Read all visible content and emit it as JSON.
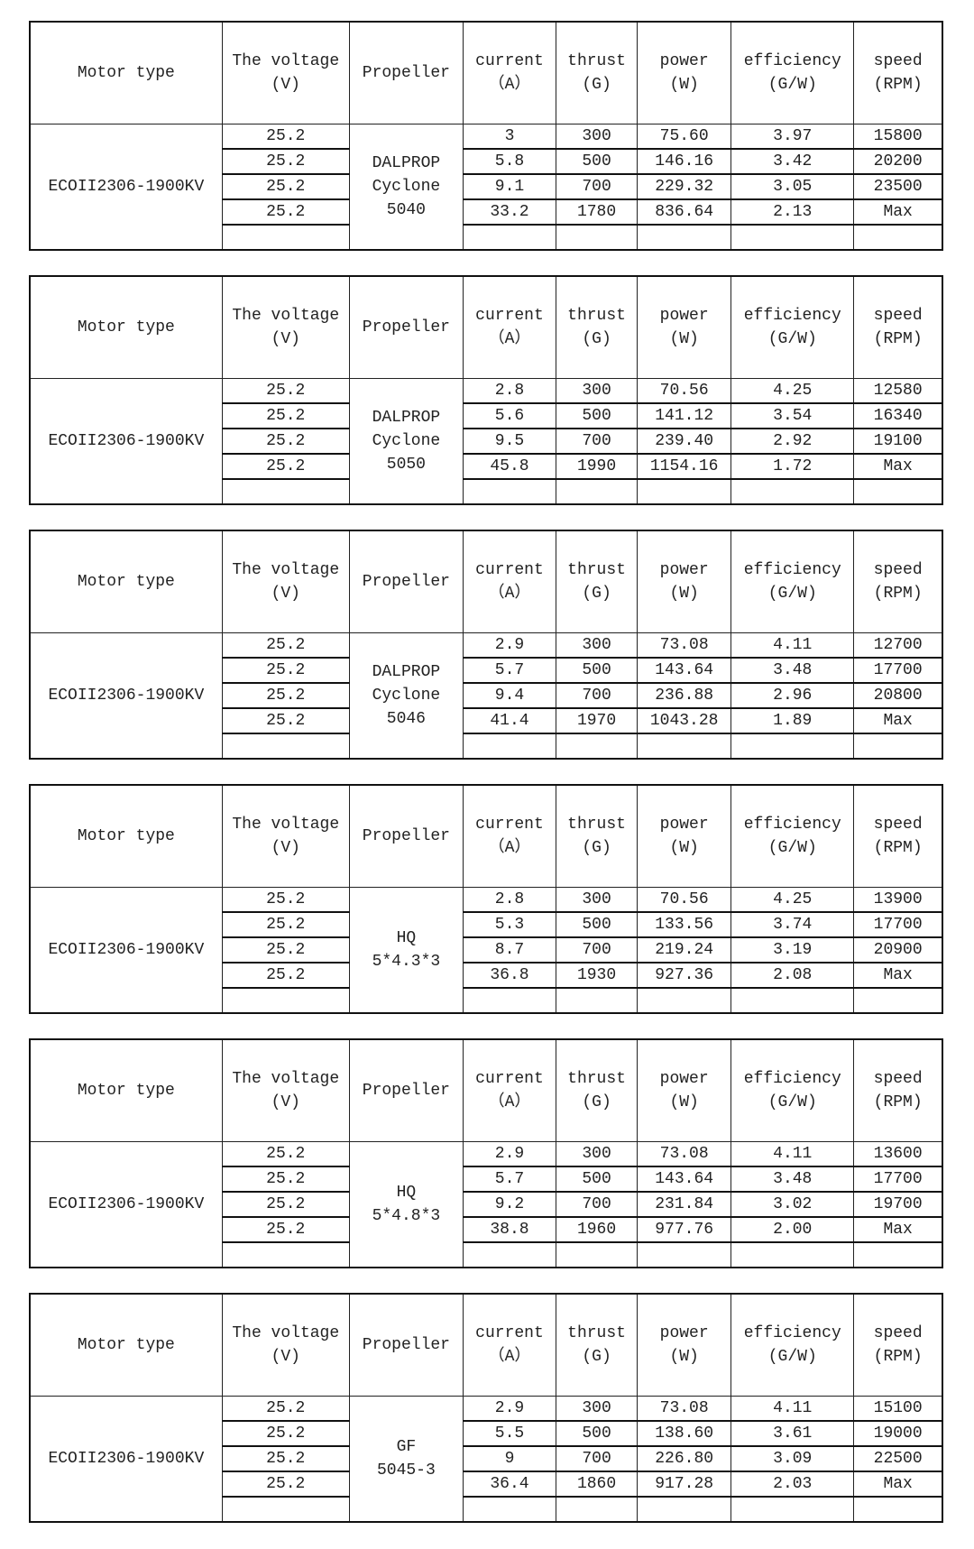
{
  "headers": {
    "motor_type": "Motor type",
    "voltage": [
      "The voltage",
      "(V)"
    ],
    "propeller": "Propeller",
    "current": [
      "current",
      "（A）"
    ],
    "thrust": [
      "thrust",
      "(G)"
    ],
    "power": [
      "power",
      "(W)"
    ],
    "efficiency": [
      "efficiency",
      "(G/W)"
    ],
    "speed": [
      "speed",
      "(RPM)"
    ]
  },
  "tables": [
    {
      "motor": "ECOII2306-1900KV",
      "propeller": [
        "DALPROP",
        "Cyclone",
        "5040"
      ],
      "rows": [
        [
          "25.2",
          "3",
          "300",
          "75.60",
          "3.97",
          "15800"
        ],
        [
          "25.2",
          "5.8",
          "500",
          "146.16",
          "3.42",
          "20200"
        ],
        [
          "25.2",
          "9.1",
          "700",
          "229.32",
          "3.05",
          "23500"
        ],
        [
          "25.2",
          "33.2",
          "1780",
          "836.64",
          "2.13",
          "Max"
        ]
      ]
    },
    {
      "motor": "ECOII2306-1900KV",
      "propeller": [
        "DALPROP",
        "Cyclone",
        "5050"
      ],
      "rows": [
        [
          "25.2",
          "2.8",
          "300",
          "70.56",
          "4.25",
          "12580"
        ],
        [
          "25.2",
          "5.6",
          "500",
          "141.12",
          "3.54",
          "16340"
        ],
        [
          "25.2",
          "9.5",
          "700",
          "239.40",
          "2.92",
          "19100"
        ],
        [
          "25.2",
          "45.8",
          "1990",
          "1154.16",
          "1.72",
          "Max"
        ]
      ]
    },
    {
      "motor": "ECOII2306-1900KV",
      "propeller": [
        "DALPROP",
        "Cyclone",
        "5046"
      ],
      "rows": [
        [
          "25.2",
          "2.9",
          "300",
          "73.08",
          "4.11",
          "12700"
        ],
        [
          "25.2",
          "5.7",
          "500",
          "143.64",
          "3.48",
          "17700"
        ],
        [
          "25.2",
          "9.4",
          "700",
          "236.88",
          "2.96",
          "20800"
        ],
        [
          "25.2",
          "41.4",
          "1970",
          "1043.28",
          "1.89",
          "Max"
        ]
      ]
    },
    {
      "motor": "ECOII2306-1900KV",
      "propeller": [
        "HQ",
        "5*4.3*3"
      ],
      "rows": [
        [
          "25.2",
          "2.8",
          "300",
          "70.56",
          "4.25",
          "13900"
        ],
        [
          "25.2",
          "5.3",
          "500",
          "133.56",
          "3.74",
          "17700"
        ],
        [
          "25.2",
          "8.7",
          "700",
          "219.24",
          "3.19",
          "20900"
        ],
        [
          "25.2",
          "36.8",
          "1930",
          "927.36",
          "2.08",
          "Max"
        ]
      ]
    },
    {
      "motor": "ECOII2306-1900KV",
      "propeller": [
        "HQ",
        "5*4.8*3"
      ],
      "rows": [
        [
          "25.2",
          "2.9",
          "300",
          "73.08",
          "4.11",
          "13600"
        ],
        [
          "25.2",
          "5.7",
          "500",
          "143.64",
          "3.48",
          "17700"
        ],
        [
          "25.2",
          "9.2",
          "700",
          "231.84",
          "3.02",
          "19700"
        ],
        [
          "25.2",
          "38.8",
          "1960",
          "977.76",
          "2.00",
          "Max"
        ]
      ]
    },
    {
      "motor": "ECOII2306-1900KV",
      "propeller": [
        "GF",
        "5045-3"
      ],
      "rows": [
        [
          "25.2",
          "2.9",
          "300",
          "73.08",
          "4.11",
          "15100"
        ],
        [
          "25.2",
          "5.5",
          "500",
          "138.60",
          "3.61",
          "19000"
        ],
        [
          "25.2",
          "9",
          "700",
          "226.80",
          "3.09",
          "22500"
        ],
        [
          "25.2",
          "36.4",
          "1860",
          "917.28",
          "2.03",
          "Max"
        ]
      ]
    }
  ]
}
